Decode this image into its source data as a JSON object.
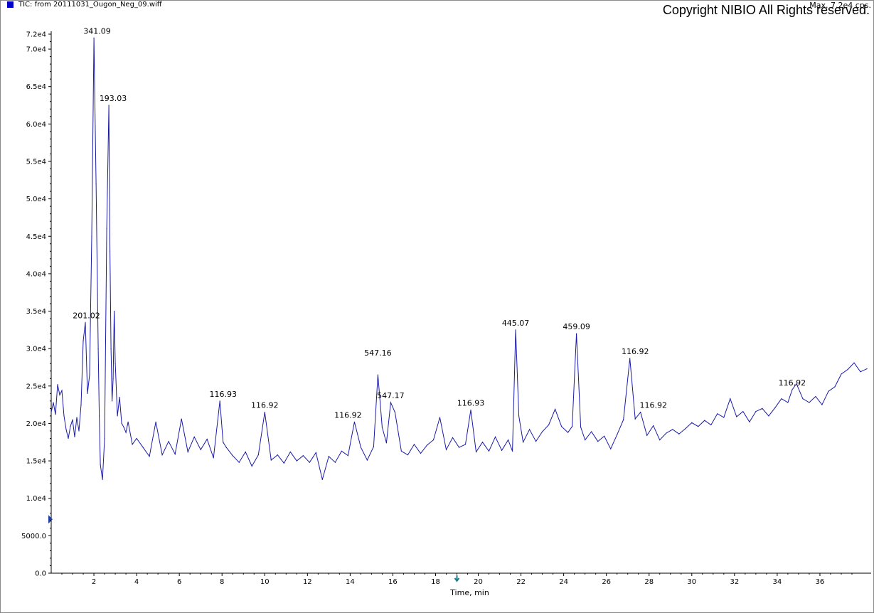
{
  "header": {
    "trace_title": "TIC: from 20111031_Ougon_Neg_09.wiff",
    "max_label": "Max. 7.2e4 cps.",
    "copyright": "Copyright NIBIO All Rights reserved."
  },
  "colors": {
    "trace": "#1a1aa6",
    "marker": "#0000c8",
    "arrow": "#1f7f8f"
  },
  "chart_data": {
    "type": "line",
    "title": "TIC: from 20111031_Ougon_Neg_09.wiff",
    "xlabel": "Time, min",
    "ylabel": "",
    "xlim": [
      0,
      38.2
    ],
    "ylim": [
      0,
      72000
    ],
    "x_ticks": [
      2,
      4,
      6,
      8,
      10,
      12,
      14,
      16,
      18,
      20,
      22,
      24,
      26,
      28,
      30,
      32,
      34,
      36
    ],
    "x_tick_labels": [
      "2",
      "4",
      "6",
      "8",
      "10",
      "12",
      "14",
      "16",
      "18",
      "20",
      "22",
      "24",
      "26",
      "28",
      "30",
      "32",
      "34",
      "36"
    ],
    "y_ticks": [
      0,
      5000,
      10000,
      15000,
      20000,
      25000,
      30000,
      35000,
      40000,
      45000,
      50000,
      55000,
      60000,
      65000,
      70000,
      72000
    ],
    "y_tick_labels": [
      "0.0",
      "5000.0",
      "1.0e4",
      "1.5e4",
      "2.0e4",
      "2.5e4",
      "3.0e4",
      "3.5e4",
      "4.0e4",
      "4.5e4",
      "5.0e4",
      "5.5e4",
      "6.0e4",
      "6.5e4",
      "7.0e4",
      "7.2e4"
    ],
    "series": [
      {
        "x": [
          0,
          0.1,
          0.2,
          0.3,
          0.4,
          0.5,
          0.6,
          0.7,
          0.8,
          0.9,
          1.0,
          1.1,
          1.2,
          1.3,
          1.4,
          1.5,
          1.6,
          1.7,
          1.8,
          1.9,
          2.0,
          2.1,
          2.2,
          2.25,
          2.3,
          2.4,
          2.5,
          2.6,
          2.7,
          2.75,
          2.8,
          2.85,
          2.9,
          2.95,
          3.0,
          3.1,
          3.2,
          3.3,
          3.4,
          3.5,
          3.6,
          3.8,
          4.0,
          4.3,
          4.6,
          4.9,
          5.2,
          5.5,
          5.8,
          6.1,
          6.4,
          6.7,
          7.0,
          7.3,
          7.6,
          7.9,
          8.05,
          8.2,
          8.5,
          8.8,
          9.1,
          9.4,
          9.7,
          10.0,
          10.3,
          10.6,
          10.9,
          11.2,
          11.5,
          11.8,
          12.1,
          12.4,
          12.7,
          13.0,
          13.3,
          13.6,
          13.9,
          14.2,
          14.5,
          14.8,
          15.1,
          15.3,
          15.5,
          15.7,
          15.9,
          16.1,
          16.4,
          16.7,
          17.0,
          17.3,
          17.6,
          17.9,
          18.2,
          18.5,
          18.8,
          19.1,
          19.4,
          19.65,
          19.9,
          20.2,
          20.5,
          20.8,
          21.1,
          21.4,
          21.6,
          21.75,
          21.9,
          22.1,
          22.4,
          22.7,
          23.0,
          23.3,
          23.6,
          23.9,
          24.2,
          24.4,
          24.6,
          24.8,
          25.0,
          25.3,
          25.6,
          25.9,
          26.2,
          26.5,
          26.8,
          27.1,
          27.35,
          27.6,
          27.9,
          28.2,
          28.5,
          28.8,
          29.1,
          29.4,
          29.7,
          30.0,
          30.3,
          30.6,
          30.9,
          31.2,
          31.5,
          31.8,
          32.1,
          32.4,
          32.7,
          33.0,
          33.3,
          33.6,
          33.9,
          34.2,
          34.5,
          34.7,
          34.9,
          35.2,
          35.5,
          35.8,
          36.1,
          36.4,
          36.7,
          37.0,
          37.3,
          37.6,
          37.9,
          38.2
        ],
        "values": [
          21500,
          22800,
          21200,
          25200,
          23800,
          24400,
          21000,
          19200,
          18000,
          19600,
          20500,
          18200,
          20800,
          19000,
          22500,
          31000,
          33500,
          24000,
          26500,
          45000,
          71500,
          52000,
          30000,
          21000,
          14500,
          12500,
          18000,
          46000,
          62500,
          43000,
          30000,
          23000,
          26000,
          35000,
          28000,
          21000,
          23500,
          20000,
          19500,
          18800,
          20200,
          17200,
          18000,
          16800,
          15600,
          20200,
          15800,
          17600,
          15900,
          20600,
          16200,
          18200,
          16500,
          17900,
          15400,
          23000,
          17500,
          16800,
          15700,
          14800,
          16200,
          14300,
          15800,
          21500,
          15100,
          15800,
          14700,
          16200,
          15000,
          15700,
          14800,
          16100,
          12500,
          15600,
          14800,
          16300,
          15700,
          20200,
          16800,
          15100,
          16900,
          26500,
          19500,
          17400,
          22800,
          21500,
          16300,
          15800,
          17200,
          16000,
          17100,
          17800,
          20800,
          16500,
          18100,
          16800,
          17200,
          21800,
          16200,
          17500,
          16300,
          18200,
          16400,
          17800,
          16300,
          32500,
          21000,
          17500,
          19200,
          17600,
          18900,
          19800,
          21900,
          19600,
          18800,
          19600,
          32000,
          19500,
          17800,
          18900,
          17600,
          18300,
          16600,
          18500,
          20500,
          28700,
          20600,
          21500,
          18400,
          19700,
          17800,
          18700,
          19200,
          18600,
          19300,
          20100,
          19600,
          20400,
          19800,
          21300,
          20800,
          23300,
          20900,
          21600,
          20200,
          21600,
          22000,
          21000,
          22100,
          23300,
          22800,
          24500,
          25300,
          23300,
          22800,
          23600,
          22500,
          24300,
          24900,
          26600,
          27200,
          28100,
          26900,
          27300
        ]
      }
    ],
    "peak_labels": [
      {
        "x": 1.65,
        "y": 33500,
        "text": "201.02"
      },
      {
        "x": 2.15,
        "y": 71500,
        "text": "341.09"
      },
      {
        "x": 2.9,
        "y": 62500,
        "text": "193.03"
      },
      {
        "x": 8.05,
        "y": 23000,
        "text": "116.93"
      },
      {
        "x": 10.0,
        "y": 21500,
        "text": "116.92"
      },
      {
        "x": 13.9,
        "y": 20200,
        "text": "116.92"
      },
      {
        "x": 15.3,
        "y": 28500,
        "text": "547.16"
      },
      {
        "x": 15.9,
        "y": 22800,
        "text": "547.17"
      },
      {
        "x": 19.65,
        "y": 21800,
        "text": "116.93"
      },
      {
        "x": 21.75,
        "y": 32500,
        "text": "445.07"
      },
      {
        "x": 24.6,
        "y": 32000,
        "text": "459.09"
      },
      {
        "x": 27.35,
        "y": 28700,
        "text": "116.92"
      },
      {
        "x": 28.2,
        "y": 21500,
        "text": "116.92"
      },
      {
        "x": 34.7,
        "y": 24500,
        "text": "116.92"
      }
    ],
    "markers": {
      "y_marker_value": 7200,
      "x_marker_value": 19.0
    },
    "grid": false,
    "legend": "none"
  }
}
